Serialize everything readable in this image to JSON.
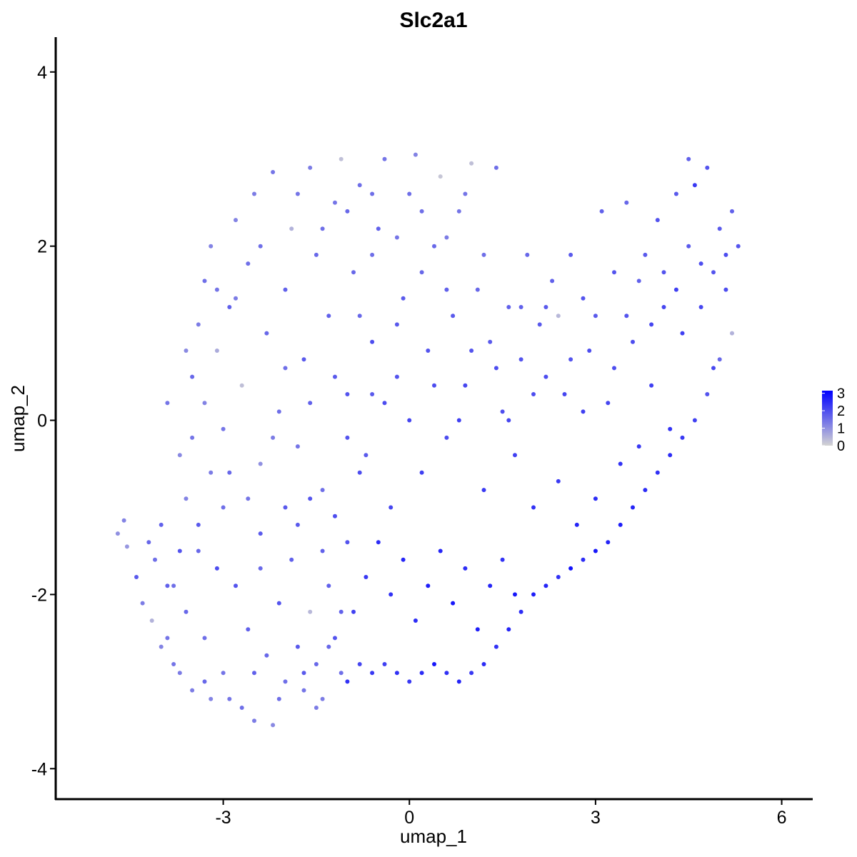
{
  "chart_data": {
    "type": "scatter",
    "title": "Slc2a1",
    "xlabel": "umap_1",
    "ylabel": "umap_2",
    "xlim": [
      -5.7,
      6.5
    ],
    "ylim": [
      -4.35,
      4.4
    ],
    "x_ticks": [
      -3,
      0,
      3,
      6
    ],
    "y_ticks": [
      -4,
      -2,
      0,
      2,
      4
    ],
    "x_tick_labels": [
      "-3",
      "0",
      "3",
      "6"
    ],
    "y_tick_labels": [
      "-4",
      "-2",
      "0",
      "2",
      "4"
    ],
    "grid": false,
    "legend": {
      "placement": "right",
      "type": "continuous colorbar",
      "labels": [
        "3",
        "2",
        "1",
        "0"
      ],
      "values": [
        3,
        2,
        1,
        0
      ],
      "range": [
        0,
        3.15
      ],
      "low_color": "#d3d3d3",
      "high_color": "#0000ff"
    },
    "point_color_scale": {
      "low": "#d3d3d3",
      "high": "#0000ff",
      "min": 0,
      "max": 3.15
    },
    "points_note_x_y_value": "[umap_1, umap_2, expression]",
    "points": [
      [
        -4.7,
        -1.3,
        1.0
      ],
      [
        -4.6,
        -1.15,
        1.2
      ],
      [
        -4.55,
        -1.45,
        0.9
      ],
      [
        -4.4,
        -1.8,
        1.8
      ],
      [
        -4.3,
        -2.1,
        1.3
      ],
      [
        -4.2,
        -1.4,
        1.6
      ],
      [
        -4.15,
        -2.3,
        0.5
      ],
      [
        -4.1,
        -1.6,
        1.5
      ],
      [
        -4.0,
        -2.6,
        1.2
      ],
      [
        -3.9,
        -1.9,
        1.7
      ],
      [
        -3.8,
        -2.8,
        1.4
      ],
      [
        -3.7,
        -1.5,
        1.9
      ],
      [
        -3.6,
        -2.2,
        1.6
      ],
      [
        -3.5,
        -3.1,
        1.3
      ],
      [
        -3.4,
        -1.2,
        1.8
      ],
      [
        -3.3,
        -2.5,
        1.5
      ],
      [
        -3.2,
        -3.2,
        1.2
      ],
      [
        -3.1,
        -1.7,
        2.0
      ],
      [
        -3.0,
        -2.9,
        1.4
      ],
      [
        -2.9,
        -0.6,
        1.6
      ],
      [
        -2.8,
        -1.9,
        1.9
      ],
      [
        -2.7,
        -3.3,
        1.5
      ],
      [
        -2.6,
        -2.4,
        1.7
      ],
      [
        -2.5,
        -3.45,
        1.3
      ],
      [
        -2.4,
        -1.3,
        1.8
      ],
      [
        -2.3,
        -2.7,
        1.6
      ],
      [
        -2.2,
        -3.5,
        1.1
      ],
      [
        -2.1,
        -2.1,
        1.9
      ],
      [
        -2.0,
        -3.0,
        1.5
      ],
      [
        -1.9,
        -1.6,
        1.7
      ],
      [
        -1.8,
        -2.6,
        1.8
      ],
      [
        -1.7,
        -3.1,
        1.4
      ],
      [
        -1.6,
        -2.2,
        0.4
      ],
      [
        -1.5,
        -2.8,
        1.6
      ],
      [
        -1.4,
        -3.2,
        1.3
      ],
      [
        -1.3,
        -1.9,
        1.7
      ],
      [
        -1.2,
        -2.5,
        1.9
      ],
      [
        -1.1,
        -2.9,
        1.5
      ],
      [
        -3.9,
        0.2,
        1.4
      ],
      [
        -3.7,
        -0.4,
        1.1
      ],
      [
        -3.5,
        0.5,
        1.6
      ],
      [
        -3.4,
        1.1,
        1.3
      ],
      [
        -3.3,
        1.6,
        1.5
      ],
      [
        -3.2,
        2.0,
        1.2
      ],
      [
        -3.1,
        0.8,
        0.6
      ],
      [
        -3.0,
        -0.1,
        1.4
      ],
      [
        -2.9,
        1.3,
        1.7
      ],
      [
        -2.8,
        2.3,
        1.2
      ],
      [
        -2.7,
        0.4,
        0.3
      ],
      [
        -2.6,
        1.8,
        1.5
      ],
      [
        -2.5,
        2.6,
        1.3
      ],
      [
        -2.4,
        -0.5,
        1.0
      ],
      [
        -2.3,
        1.0,
        1.6
      ],
      [
        -2.2,
        2.85,
        1.4
      ],
      [
        -2.1,
        0.1,
        1.5
      ],
      [
        -2.0,
        1.5,
        1.7
      ],
      [
        -1.9,
        2.2,
        0.5
      ],
      [
        -1.8,
        -0.3,
        1.4
      ],
      [
        -1.7,
        0.7,
        1.8
      ],
      [
        -1.6,
        2.9,
        1.3
      ],
      [
        -1.5,
        1.9,
        1.6
      ],
      [
        -1.4,
        -0.8,
        1.5
      ],
      [
        -1.3,
        1.2,
        1.7
      ],
      [
        -1.2,
        2.5,
        1.4
      ],
      [
        -1.1,
        3.0,
        0.3
      ],
      [
        -1.0,
        0.3,
        1.9
      ],
      [
        -0.9,
        1.7,
        1.6
      ],
      [
        -0.8,
        2.7,
        1.5
      ],
      [
        -0.7,
        -0.4,
        1.8
      ],
      [
        -0.6,
        0.9,
        2.0
      ],
      [
        -0.5,
        2.2,
        1.7
      ],
      [
        -0.4,
        3.0,
        1.4
      ],
      [
        -0.3,
        -1.0,
        2.1
      ],
      [
        -0.2,
        0.5,
        1.9
      ],
      [
        -0.1,
        1.4,
        1.8
      ],
      [
        0.0,
        2.6,
        1.5
      ],
      [
        0.1,
        3.05,
        1.2
      ],
      [
        0.2,
        -0.6,
        2.2
      ],
      [
        0.3,
        0.8,
        1.9
      ],
      [
        0.4,
        2.0,
        1.6
      ],
      [
        0.5,
        2.8,
        0.2
      ],
      [
        0.6,
        -0.2,
        2.0
      ],
      [
        0.7,
        1.2,
        1.8
      ],
      [
        0.8,
        2.4,
        1.4
      ],
      [
        0.9,
        0.4,
        2.1
      ],
      [
        1.0,
        2.95,
        0.3
      ],
      [
        1.1,
        1.5,
        1.6
      ],
      [
        1.2,
        -0.8,
        2.3
      ],
      [
        1.3,
        0.9,
        1.8
      ],
      [
        1.4,
        2.9,
        1.5
      ],
      [
        1.5,
        0.1,
        2.0
      ],
      [
        1.6,
        1.3,
        1.7
      ],
      [
        1.7,
        -0.4,
        2.2
      ],
      [
        1.8,
        0.7,
        1.9
      ],
      [
        1.9,
        1.9,
        1.6
      ],
      [
        2.0,
        -1.0,
        2.4
      ],
      [
        2.1,
        1.1,
        1.8
      ],
      [
        2.2,
        0.5,
        2.0
      ],
      [
        2.3,
        1.6,
        1.7
      ],
      [
        2.4,
        -0.7,
        2.3
      ],
      [
        2.5,
        0.3,
        2.1
      ],
      [
        2.6,
        1.9,
        1.8
      ],
      [
        2.7,
        -1.2,
        2.6
      ],
      [
        2.8,
        1.4,
        1.9
      ],
      [
        2.9,
        0.8,
        2.0
      ],
      [
        3.0,
        -0.9,
        2.5
      ],
      [
        3.1,
        2.4,
        1.7
      ],
      [
        3.2,
        0.2,
        2.1
      ],
      [
        3.3,
        1.7,
        1.9
      ],
      [
        3.4,
        -0.5,
        2.4
      ],
      [
        3.5,
        2.5,
        1.6
      ],
      [
        3.6,
        0.9,
        2.0
      ],
      [
        3.7,
        -0.3,
        2.3
      ],
      [
        3.8,
        1.9,
        1.8
      ],
      [
        3.9,
        0.4,
        2.2
      ],
      [
        4.0,
        2.3,
        1.9
      ],
      [
        4.1,
        1.3,
        2.1
      ],
      [
        4.2,
        -0.1,
        2.4
      ],
      [
        4.3,
        2.6,
        1.8
      ],
      [
        4.4,
        1.0,
        2.2
      ],
      [
        4.5,
        3.0,
        1.7
      ],
      [
        4.6,
        2.7,
        2.3
      ],
      [
        4.7,
        1.8,
        2.0
      ],
      [
        4.8,
        2.9,
        1.9
      ],
      [
        4.9,
        0.6,
        2.1
      ],
      [
        5.0,
        2.2,
        1.8
      ],
      [
        5.1,
        1.5,
        2.0
      ],
      [
        5.2,
        2.4,
        1.7
      ],
      [
        5.3,
        2.0,
        1.9
      ],
      [
        5.2,
        1.0,
        0.5
      ],
      [
        5.0,
        0.7,
        1.6
      ],
      [
        4.8,
        0.3,
        1.9
      ],
      [
        4.6,
        0.0,
        2.2
      ],
      [
        4.4,
        -0.2,
        2.3
      ],
      [
        4.2,
        -0.4,
        2.5
      ],
      [
        4.0,
        -0.6,
        2.4
      ],
      [
        3.8,
        -0.8,
        2.5
      ],
      [
        3.6,
        -1.0,
        2.6
      ],
      [
        3.4,
        -1.2,
        2.7
      ],
      [
        3.2,
        -1.4,
        2.6
      ],
      [
        3.0,
        -1.5,
        2.8
      ],
      [
        2.8,
        -1.6,
        2.5
      ],
      [
        2.6,
        -1.7,
        2.9
      ],
      [
        2.4,
        -1.8,
        2.4
      ],
      [
        2.2,
        -1.9,
        2.6
      ],
      [
        2.0,
        -2.0,
        2.7
      ],
      [
        1.8,
        -2.2,
        2.5
      ],
      [
        1.6,
        -2.4,
        2.6
      ],
      [
        1.4,
        -2.6,
        2.4
      ],
      [
        1.2,
        -2.8,
        2.5
      ],
      [
        1.0,
        -2.9,
        2.3
      ],
      [
        0.8,
        -3.0,
        2.6
      ],
      [
        0.6,
        -2.9,
        2.4
      ],
      [
        0.4,
        -2.8,
        2.8
      ],
      [
        0.2,
        -2.9,
        2.5
      ],
      [
        0.0,
        -3.0,
        2.3
      ],
      [
        -0.2,
        -2.9,
        2.4
      ],
      [
        -0.4,
        -2.8,
        2.2
      ],
      [
        -0.6,
        -2.9,
        2.3
      ],
      [
        -0.8,
        -2.8,
        2.1
      ],
      [
        -1.0,
        -3.0,
        2.4
      ],
      [
        -0.9,
        -2.2,
        2.2
      ],
      [
        -0.7,
        -1.8,
        2.3
      ],
      [
        -0.5,
        -1.4,
        2.5
      ],
      [
        -0.3,
        -2.0,
        2.4
      ],
      [
        -0.1,
        -1.6,
        2.6
      ],
      [
        0.1,
        -2.3,
        2.5
      ],
      [
        0.3,
        -1.9,
        2.7
      ],
      [
        0.5,
        -1.5,
        2.6
      ],
      [
        0.7,
        -2.1,
        2.8
      ],
      [
        0.9,
        -1.7,
        2.5
      ],
      [
        1.1,
        -2.4,
        2.7
      ],
      [
        1.3,
        -1.9,
        2.6
      ],
      [
        1.5,
        -1.6,
        2.4
      ],
      [
        1.7,
        -2.0,
        2.8
      ],
      [
        -1.8,
        -1.2,
        1.8
      ],
      [
        -1.6,
        -0.9,
        1.9
      ],
      [
        -1.4,
        -1.5,
        1.7
      ],
      [
        -1.2,
        -1.1,
        2.0
      ],
      [
        -1.0,
        -1.4,
        1.9
      ],
      [
        -2.6,
        -0.9,
        1.4
      ],
      [
        -2.4,
        -1.7,
        1.6
      ],
      [
        -2.2,
        -0.2,
        1.3
      ],
      [
        -2.0,
        -1.0,
        1.8
      ],
      [
        -3.0,
        -1.0,
        1.5
      ],
      [
        -3.2,
        -0.6,
        1.3
      ],
      [
        -3.4,
        -1.5,
        1.6
      ],
      [
        -3.6,
        -0.9,
        1.2
      ],
      [
        -3.8,
        -1.9,
        1.5
      ],
      [
        -4.0,
        -1.2,
        1.7
      ],
      [
        -3.9,
        -2.5,
        1.4
      ],
      [
        -3.7,
        -2.9,
        1.3
      ],
      [
        -3.3,
        -3.0,
        1.6
      ],
      [
        -2.9,
        -3.2,
        1.4
      ],
      [
        -2.5,
        -2.9,
        1.7
      ],
      [
        -2.1,
        -3.2,
        1.5
      ],
      [
        -1.7,
        -2.9,
        1.8
      ],
      [
        -1.5,
        -3.3,
        1.3
      ],
      [
        -1.3,
        -2.6,
        1.6
      ],
      [
        -1.1,
        -2.2,
        1.7
      ],
      [
        -0.8,
        1.2,
        1.6
      ],
      [
        -0.6,
        1.9,
        1.5
      ],
      [
        -0.4,
        0.2,
        2.0
      ],
      [
        -0.2,
        1.1,
        1.8
      ],
      [
        0.0,
        0.0,
        2.1
      ],
      [
        0.2,
        1.7,
        1.6
      ],
      [
        0.4,
        0.4,
        2.0
      ],
      [
        0.6,
        1.5,
        1.7
      ],
      [
        0.8,
        0.0,
        2.2
      ],
      [
        1.0,
        0.8,
        1.9
      ],
      [
        1.2,
        1.9,
        1.5
      ],
      [
        1.4,
        0.6,
        2.0
      ],
      [
        1.6,
        0.0,
        2.1
      ],
      [
        1.8,
        1.3,
        1.7
      ],
      [
        2.0,
        0.3,
        2.0
      ],
      [
        2.2,
        1.3,
        1.8
      ],
      [
        2.4,
        1.2,
        0.4
      ],
      [
        2.6,
        0.7,
        1.9
      ],
      [
        2.8,
        0.1,
        2.2
      ],
      [
        3.0,
        1.2,
        1.8
      ],
      [
        3.3,
        0.6,
        2.0
      ],
      [
        3.5,
        1.2,
        1.9
      ],
      [
        3.7,
        1.6,
        1.7
      ],
      [
        3.9,
        1.1,
        2.1
      ],
      [
        4.1,
        1.7,
        1.9
      ],
      [
        4.3,
        1.5,
        2.2
      ],
      [
        4.5,
        2.0,
        1.8
      ],
      [
        4.7,
        1.3,
        2.1
      ],
      [
        4.9,
        1.7,
        1.9
      ],
      [
        5.1,
        1.9,
        2.0
      ],
      [
        -1.8,
        2.6,
        1.4
      ],
      [
        -1.4,
        2.2,
        1.5
      ],
      [
        -1.0,
        2.4,
        1.6
      ],
      [
        -0.6,
        2.6,
        1.5
      ],
      [
        -0.2,
        2.1,
        1.4
      ],
      [
        0.2,
        2.4,
        1.5
      ],
      [
        0.6,
        2.1,
        1.3
      ],
      [
        0.9,
        2.6,
        1.4
      ],
      [
        -2.4,
        2.0,
        1.5
      ],
      [
        -2.8,
        1.4,
        1.3
      ],
      [
        -3.1,
        1.5,
        1.4
      ],
      [
        -3.3,
        0.2,
        1.2
      ],
      [
        -3.5,
        -0.2,
        1.4
      ],
      [
        -3.6,
        0.8,
        1.1
      ],
      [
        -2.0,
        0.6,
        1.5
      ],
      [
        -1.6,
        0.2,
        1.7
      ],
      [
        -1.2,
        0.5,
        1.8
      ],
      [
        -1.0,
        -0.2,
        1.9
      ],
      [
        -0.8,
        -0.6,
        2.0
      ],
      [
        -0.6,
        0.3,
        1.8
      ]
    ]
  }
}
